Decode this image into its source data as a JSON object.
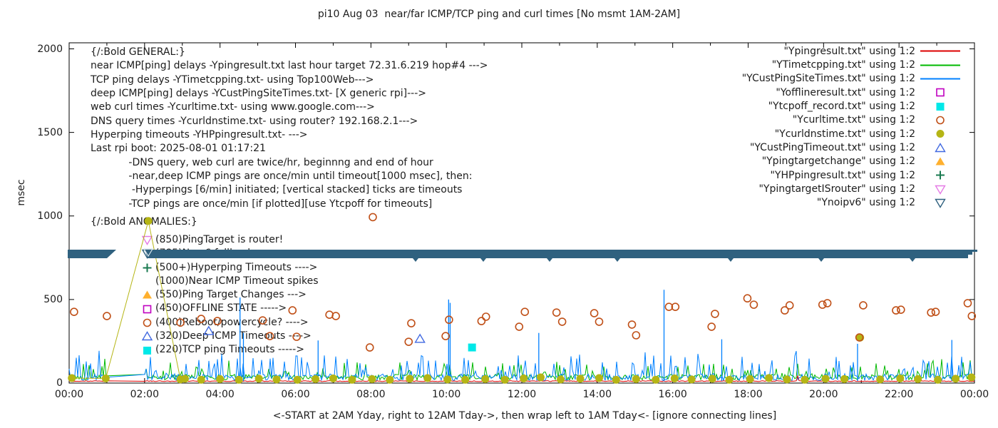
{
  "title": "pi10 Aug 03  near/far ICMP/TCP ping and curl times [No msmt 1AM-2AM]",
  "axes": {
    "y_label": "msec",
    "y_ticks": [
      0,
      500,
      1000,
      1500,
      2000
    ],
    "x_ticks": [
      "00:00",
      "02:00",
      "04:00",
      "06:00",
      "08:00",
      "10:00",
      "12:00",
      "14:00",
      "16:00",
      "18:00",
      "20:00",
      "22:00",
      "00:00"
    ],
    "x_label": "<-START at 2AM Yday, right to 12AM Tday->, then wrap left to 1AM Tday<- [ignore connecting lines]"
  },
  "general_block": {
    "lines": [
      "{/:Bold GENERAL:}",
      "near ICMP[ping] delays -Ypingresult.txt last hour target 72.31.6.219 hop#4 --->",
      "TCP ping delays -YTimetcpping.txt- using Top100Web--->",
      "deep ICMP[ping] delays -YCustPingSiteTimes.txt- [X generic rpi]--->",
      "web curl times -Ycurltime.txt- using www.google.com--->",
      "DNS query times -Ycurldnstime.txt- using router? 192.168.2.1--->",
      "Hyperping timeouts -YHPpingresult.txt- --->",
      "Last rpi boot: 2025-08-01 01:17:21",
      "            -DNS query, web curl are twice/hr, beginnng and end of hour",
      "            -near,deep ICMP pings are once/min until timeout[1000 msec], then:",
      "             -Hyperpings [6/min] initiated; [vertical stacked] ticks are timeouts",
      "            -TCP pings are once/min [if plotted][use Ytcpoff for timeouts]"
    ]
  },
  "anomalies_block": {
    "heading": "{/:Bold ANOMALIES:}",
    "items": [
      {
        "marker": "triangle-down-open",
        "color": "#e57ae5",
        "text": "(850)PingTarget is router!"
      },
      {
        "marker": "triangle-down-open",
        "color": "#2f617f",
        "text": "(785)No v6 fallback ---->"
      },
      {
        "marker": "plus",
        "color": "#1a7a50",
        "text": "(500+)Hyperping Timeouts ---->"
      },
      {
        "marker": "none",
        "color": "",
        "text": "(1000)Near ICMP Timeout spikes"
      },
      {
        "marker": "triangle-up-filled",
        "color": "#ffb02e",
        "text": "(550)Ping Target Changes --->"
      },
      {
        "marker": "square-open",
        "color": "#c000c0",
        "text": "(450)OFFLINE STATE ----->"
      },
      {
        "marker": "circle-open",
        "color": "#c05018",
        "text": "(400)Reboot/powercycle? ---->"
      },
      {
        "marker": "triangle-up-open",
        "color": "#4169e1",
        "text": "(320)Deep ICMP Timeouts ---->"
      },
      {
        "marker": "square-filled",
        "color": "#00e8e8",
        "text": "(220)TCP ping Timeouts ----->"
      }
    ]
  },
  "legend": [
    {
      "label": "\"Ypingresult.txt\" using 1:2",
      "sample": "line",
      "color": "#dd0000"
    },
    {
      "label": "\"YTimetcpping.txt\" using 1:2",
      "sample": "line",
      "color": "#00b800"
    },
    {
      "label": "\"YCustPingSiteTimes.txt\" using 1:2",
      "sample": "line",
      "color": "#0080ff"
    },
    {
      "label": "\"Yofflineresult.txt\" using 1:2",
      "sample": "square-open",
      "color": "#c000c0"
    },
    {
      "label": "\"Ytcpoff_record.txt\" using 1:2",
      "sample": "square-filled",
      "color": "#00e8e8"
    },
    {
      "label": "\"Ycurltime.txt\" using 1:2",
      "sample": "circle-open",
      "color": "#c05018"
    },
    {
      "label": "\"Ycurldnstime.txt\" using 1:2",
      "sample": "circle-filled",
      "color": "#b5b515"
    },
    {
      "label": "\"YCustPingTimeout.txt\" using 1:2",
      "sample": "triangle-up-open",
      "color": "#4169e1"
    },
    {
      "label": "\"Ypingtargetchange\" using 1:2",
      "sample": "triangle-up-filled",
      "color": "#ffb02e"
    },
    {
      "label": "\"YHPpingresult.txt\" using 1:2",
      "sample": "plus",
      "color": "#1a7a50"
    },
    {
      "label": "\"YpingtargetISrouter\" using 1:2",
      "sample": "triangle-down-open",
      "color": "#e57ae5"
    },
    {
      "label": "\"Ynoipv6\" using 1:2",
      "sample": "triangle-down-open",
      "color": "#2f617f"
    }
  ],
  "chart_data": {
    "type": "line",
    "title": "pi10 Aug 03  near/far ICMP/TCP ping and curl times [No msmt 1AM-2AM]",
    "xlabel": "<-START at 2AM Yday, right to 12AM Tday->, then wrap left to 1AM Tday<- [ignore connecting lines]",
    "ylabel": "msec",
    "x_unit": "hours_decimal",
    "xlim": [
      0,
      24
    ],
    "ylim": [
      0,
      2000
    ],
    "grid": false,
    "legend_position": "top-right-inside",
    "no_measurement_gap_hours": [
      1.0,
      2.0
    ],
    "series": [
      {
        "name": "Ypingresult.txt",
        "style": "line",
        "color": "#dd0000",
        "profile": {
          "kind": "noise",
          "base_msec": 9,
          "jitter_msec": 5,
          "note": "near ICMP ping, nearly flat ~10 msec"
        }
      },
      {
        "name": "YTimetcpping.txt",
        "style": "line",
        "color": "#00b800",
        "profile": {
          "kind": "noise",
          "base_msec": 18,
          "jitter_msec": 34,
          "spike_chance": 0.18,
          "spike_extra_msec": 80,
          "note": "TCP ping 15-150 msec"
        }
      },
      {
        "name": "YCustPingSiteTimes.txt",
        "style": "line",
        "color": "#0080ff",
        "profile": {
          "kind": "noise",
          "base_msec": 15,
          "jitter_msec": 40,
          "spike_chance": 0.18,
          "spike_extra_msec": 120,
          "note": "deep ICMP 15-300 msec"
        },
        "tall_spikes": [
          [
            4.53,
            512
          ],
          [
            4.62,
            300
          ],
          [
            6.6,
            255
          ],
          [
            10.06,
            500
          ],
          [
            10.1,
            480
          ],
          [
            12.45,
            300
          ],
          [
            15.77,
            558
          ],
          [
            17.3,
            262
          ],
          [
            20.9,
            235
          ],
          [
            23.4,
            258
          ]
        ]
      },
      {
        "name": "Yofflineresult.txt",
        "style": "square-open",
        "color": "#c000c0",
        "points": []
      },
      {
        "name": "Ytcpoff_record.txt",
        "style": "square-filled",
        "color": "#00e8e8",
        "points": [
          [
            10.68,
            213
          ]
        ]
      },
      {
        "name": "Ycurltime.txt",
        "style": "circle-open",
        "color": "#c05018",
        "points": [
          [
            0.13,
            426
          ],
          [
            1.0,
            401
          ],
          [
            2.95,
            362
          ],
          [
            3.5,
            384
          ],
          [
            3.93,
            371
          ],
          [
            5.13,
            375
          ],
          [
            5.32,
            281
          ],
          [
            5.92,
            435
          ],
          [
            6.03,
            277
          ],
          [
            6.9,
            409
          ],
          [
            7.07,
            401
          ],
          [
            7.97,
            213
          ],
          [
            8.05,
            993
          ],
          [
            9.0,
            247
          ],
          [
            9.07,
            358
          ],
          [
            9.98,
            281
          ],
          [
            10.07,
            379
          ],
          [
            10.93,
            371
          ],
          [
            11.05,
            397
          ],
          [
            11.93,
            337
          ],
          [
            12.08,
            426
          ],
          [
            12.92,
            422
          ],
          [
            13.07,
            367
          ],
          [
            13.92,
            418
          ],
          [
            14.05,
            367
          ],
          [
            14.92,
            350
          ],
          [
            15.03,
            286
          ],
          [
            15.9,
            456
          ],
          [
            16.07,
            456
          ],
          [
            17.03,
            337
          ],
          [
            17.12,
            414
          ],
          [
            17.98,
            507
          ],
          [
            18.15,
            469
          ],
          [
            18.97,
            435
          ],
          [
            19.1,
            465
          ],
          [
            19.97,
            469
          ],
          [
            20.1,
            478
          ],
          [
            20.95,
            273
          ],
          [
            21.05,
            465
          ],
          [
            21.92,
            435
          ],
          [
            22.05,
            439
          ],
          [
            22.85,
            422
          ],
          [
            22.97,
            426
          ],
          [
            23.82,
            478
          ],
          [
            23.93,
            401
          ]
        ]
      },
      {
        "name": "Ycurldnstime.txt",
        "style": "circle-filled",
        "color": "#b5b515",
        "points": [
          [
            0.07,
            30
          ],
          [
            0.97,
            28
          ],
          [
            2.1,
            970
          ],
          [
            2.95,
            22
          ],
          [
            3.07,
            26
          ],
          [
            3.5,
            20
          ],
          [
            4.0,
            24
          ],
          [
            4.5,
            20
          ],
          [
            5.03,
            26
          ],
          [
            5.5,
            22
          ],
          [
            6.05,
            20
          ],
          [
            6.53,
            24
          ],
          [
            7.0,
            28
          ],
          [
            7.5,
            20
          ],
          [
            8.03,
            24
          ],
          [
            8.5,
            20
          ],
          [
            9.03,
            26
          ],
          [
            9.5,
            30
          ],
          [
            10.03,
            22
          ],
          [
            10.5,
            20
          ],
          [
            11.03,
            24
          ],
          [
            11.55,
            20
          ],
          [
            12.05,
            28
          ],
          [
            12.5,
            34
          ],
          [
            13.03,
            22
          ],
          [
            13.55,
            26
          ],
          [
            14.05,
            30
          ],
          [
            14.5,
            20
          ],
          [
            15.03,
            24
          ],
          [
            15.55,
            20
          ],
          [
            16.05,
            28
          ],
          [
            16.5,
            22
          ],
          [
            17.05,
            26
          ],
          [
            17.5,
            20
          ],
          [
            18.05,
            24
          ],
          [
            18.55,
            30
          ],
          [
            19.03,
            22
          ],
          [
            19.5,
            20
          ],
          [
            20.05,
            26
          ],
          [
            20.55,
            24
          ],
          [
            20.97,
            272
          ],
          [
            21.5,
            22
          ],
          [
            22.03,
            28
          ],
          [
            22.5,
            24
          ],
          [
            23.03,
            20
          ],
          [
            23.5,
            26
          ],
          [
            23.92,
            34
          ]
        ]
      },
      {
        "name": "YCustPingTimeout.txt",
        "style": "triangle-up-open",
        "color": "#4169e1",
        "points": [
          [
            3.7,
            312
          ],
          [
            9.3,
            265
          ]
        ]
      },
      {
        "name": "Ypingtargetchange",
        "style": "triangle-up-filled",
        "color": "#ffb02e",
        "points": []
      },
      {
        "name": "YHPpingresult.txt",
        "style": "plus",
        "color": "#1a7a50",
        "points": []
      },
      {
        "name": "YpingtargetISrouter",
        "style": "triangle-down-open",
        "color": "#e57ae5",
        "points": []
      },
      {
        "name": "Ynoipv6",
        "style": "triangle-down-filled-band",
        "color": "#2f617f",
        "band_msec": 785,
        "band_segments_hours": [
          [
            0,
            1.1
          ],
          [
            2.0,
            24.1
          ]
        ],
        "note": "dense overlapping down-triangles forming a solid band at ~785 msec; gap during 1AM-2AM no-measurement window"
      }
    ]
  }
}
